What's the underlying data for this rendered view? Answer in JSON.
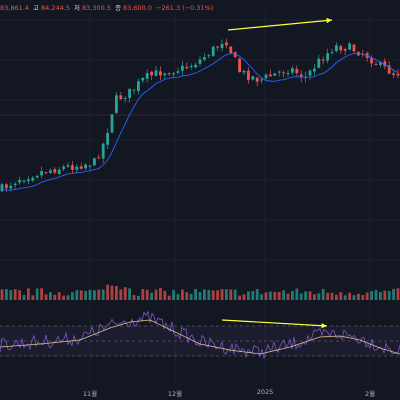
{
  "ohlc": {
    "open_value": "83,861.4",
    "high_label": "고",
    "high_value": "84,244.5",
    "low_label": "저",
    "low_value": "83,300.5",
    "close_label": "종",
    "close_value": "83,600.0",
    "change": "−261.3 (−0.31%)"
  },
  "x_axis": {
    "labels": [
      "11월",
      "12월",
      "2025",
      "2월"
    ]
  },
  "colors": {
    "background": "#131722",
    "up": "#26a69a",
    "down": "#ef5350",
    "moving_average": "#2962ff",
    "rsi_line": "#7e57c2",
    "rsi_ma": "#d4c38a",
    "annotation_arrow": "#ffff3d"
  },
  "chart_data": {
    "type": "candlestick",
    "panels": [
      "price",
      "volume",
      "rsi"
    ],
    "price_trend": "rising from late October to a peak in mid December, then ranging sideways with a slightly higher high in late January",
    "rsi_trend": "lower high in late January compared to mid December (bearish divergence)",
    "annotations": [
      "upward arrow over price highs",
      "upward arrow over RSI highs"
    ]
  }
}
